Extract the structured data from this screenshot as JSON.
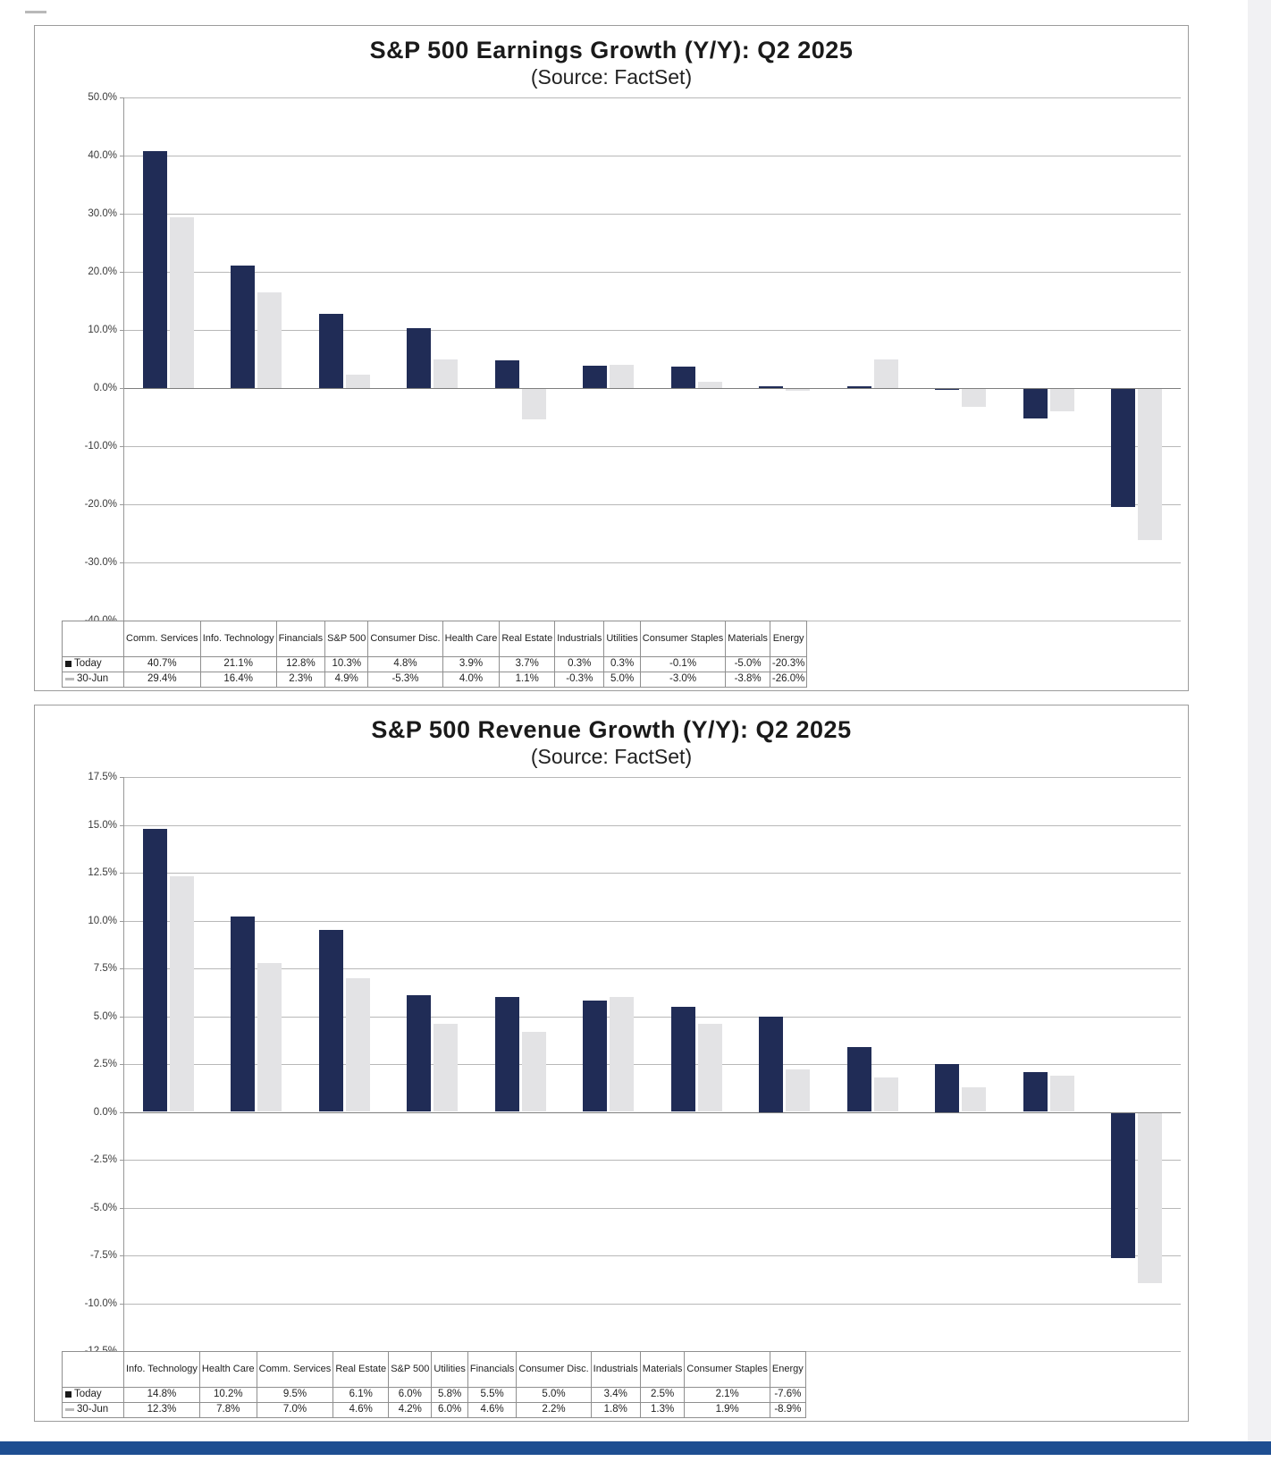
{
  "page": {
    "background": "#ffffff",
    "bottom_bar_color": "#1e4e91",
    "panel_border_color": "#9c9c9c"
  },
  "chart_data": [
    {
      "type": "bar",
      "title": "S&P 500 Earnings Growth (Y/Y): Q2 2025",
      "subtitle": "(Source: FactSet)",
      "categories": [
        "Comm. Services",
        "Info. Technology",
        "Financials",
        "S&P 500",
        "Consumer Disc.",
        "Health Care",
        "Real Estate",
        "Industrials",
        "Utilities",
        "Consumer Staples",
        "Materials",
        "Energy"
      ],
      "series": [
        {
          "name": "Today",
          "bar_color": "#202c56",
          "marker_shape": "square",
          "marker_color": "#1a1a1a",
          "values": [
            40.7,
            21.1,
            12.8,
            10.3,
            4.8,
            3.9,
            3.7,
            0.3,
            0.3,
            -0.1,
            -5.0,
            -20.3
          ]
        },
        {
          "name": "30-Jun",
          "bar_color": "#e3e3e5",
          "marker_shape": "dash",
          "marker_color": "#b9b9b9",
          "values": [
            29.4,
            16.4,
            2.3,
            4.9,
            -5.3,
            4.0,
            1.1,
            -0.3,
            5.0,
            -3.0,
            -3.8,
            -26.0
          ]
        }
      ],
      "ylim": [
        -40,
        50
      ],
      "ytick_step": 10,
      "grid": true,
      "legend_position": "table-left",
      "value_suffix": "%"
    },
    {
      "type": "bar",
      "title": "S&P 500 Revenue Growth (Y/Y): Q2 2025",
      "subtitle": "(Source: FactSet)",
      "categories": [
        "Info. Technology",
        "Health Care",
        "Comm. Services",
        "Real Estate",
        "S&P 500",
        "Utilities",
        "Financials",
        "Consumer Disc.",
        "Industrials",
        "Materials",
        "Consumer Staples",
        "Energy"
      ],
      "series": [
        {
          "name": "Today",
          "bar_color": "#202c56",
          "marker_shape": "square",
          "marker_color": "#1a1a1a",
          "values": [
            14.8,
            10.2,
            9.5,
            6.1,
            6.0,
            5.8,
            5.5,
            5.0,
            3.4,
            2.5,
            2.1,
            -7.6
          ]
        },
        {
          "name": "30-Jun",
          "bar_color": "#e3e3e5",
          "marker_shape": "dash",
          "marker_color": "#b9b9b9",
          "values": [
            12.3,
            7.8,
            7.0,
            4.6,
            4.2,
            6.0,
            4.6,
            2.2,
            1.8,
            1.3,
            1.9,
            -8.9
          ]
        }
      ],
      "ylim": [
        -12.5,
        17.5
      ],
      "ytick_step": 2.5,
      "grid": true,
      "legend_position": "table-left",
      "value_suffix": "%"
    }
  ]
}
